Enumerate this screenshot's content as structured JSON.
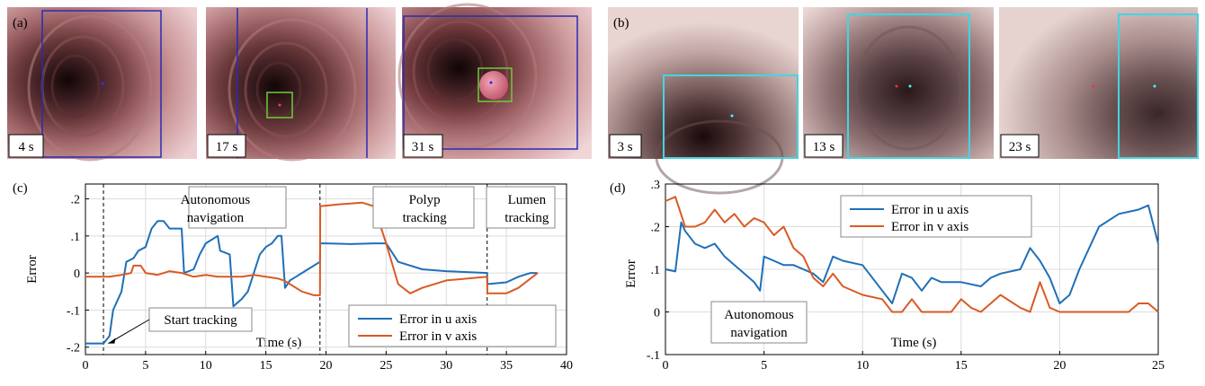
{
  "panels": {
    "a": {
      "label": "(a)",
      "frames": [
        {
          "time": "4 s",
          "boxes": [
            "blue"
          ]
        },
        {
          "time": "17 s",
          "boxes": [
            "blue",
            "green"
          ]
        },
        {
          "time": "31 s",
          "boxes": [
            "blue",
            "green"
          ]
        }
      ]
    },
    "b": {
      "label": "(b)",
      "frames": [
        {
          "time": "3 s",
          "boxes": [
            "cyan"
          ]
        },
        {
          "time": "13 s",
          "boxes": [
            "cyan"
          ]
        },
        {
          "time": "23 s",
          "boxes": [
            "cyan"
          ]
        }
      ]
    }
  },
  "colors": {
    "u_axis": "#1f6fb8",
    "v_axis": "#d95a24",
    "tracking_box_blue": "#2a2ab8",
    "tracking_box_green": "#6fcc3a",
    "tracking_box_cyan": "#45d4e0",
    "tissue_light": "#e9c7c7",
    "tissue_dark": "#3e1f22"
  },
  "chart_data": [
    {
      "panel_label": "(c)",
      "type": "line",
      "xlabel": "Time (s)",
      "ylabel": "Error",
      "xlim": [
        0,
        40
      ],
      "ylim": [
        -0.22,
        0.24
      ],
      "xticks": [
        0,
        5,
        10,
        15,
        20,
        25,
        30,
        35,
        40
      ],
      "yticks": [
        -0.2,
        -0.1,
        0,
        0.1,
        0.2
      ],
      "grid": true,
      "legend_position": "bottom-right",
      "phase_boundaries": [
        1.5,
        19.5,
        33.4
      ],
      "annotations": [
        {
          "text": "Autonomous",
          "x": 10.8,
          "y": 0.2
        },
        {
          "text": "navigation",
          "x": 10.8,
          "y": 0.155
        },
        {
          "text": "Polyp",
          "x": 28.2,
          "y": 0.175
        },
        {
          "text": "tracking",
          "x": 28.2,
          "y": 0.13
        },
        {
          "text": "Lumen",
          "x": 36.7,
          "y": 0.175
        },
        {
          "text": "tracking",
          "x": 36.7,
          "y": 0.13
        },
        {
          "text": "Start tracking",
          "x": 8.5,
          "y": -0.155
        }
      ],
      "series": [
        {
          "name": "Error in u axis",
          "x": [
            0,
            1.5,
            2,
            2.3,
            3,
            3.4,
            4,
            4.4,
            5,
            5.5,
            6,
            6.5,
            7,
            7.6,
            8,
            8.2,
            9,
            9.5,
            10,
            10.5,
            11,
            11.2,
            12,
            12.3,
            13,
            13.5,
            14,
            14.5,
            15,
            15.5,
            16,
            16.3,
            16.6,
            17,
            17.5,
            18,
            18.5,
            19.5,
            19.52,
            20,
            22,
            24,
            25,
            26,
            28,
            30,
            33.4,
            33.42,
            35,
            36,
            37,
            37.6
          ],
          "values": [
            -0.19,
            -0.19,
            -0.17,
            -0.1,
            -0.05,
            0.03,
            0.04,
            0.06,
            0.07,
            0.12,
            0.14,
            0.14,
            0.12,
            0.12,
            0.12,
            0.0,
            0.01,
            0.05,
            0.08,
            0.09,
            0.1,
            0.06,
            0.05,
            -0.09,
            -0.07,
            -0.05,
            0.0,
            0.05,
            0.07,
            0.08,
            0.1,
            0.1,
            -0.04,
            -0.02,
            -0.01,
            0.0,
            0.01,
            0.03,
            0.08,
            0.08,
            0.078,
            0.08,
            0.08,
            0.03,
            0.01,
            0.005,
            0.0,
            -0.03,
            -0.025,
            -0.01,
            0.0,
            0.0
          ]
        },
        {
          "name": "Error in v axis",
          "x": [
            0,
            1.5,
            2,
            3,
            3.8,
            4,
            4.2,
            4.4,
            4.6,
            5,
            6,
            7,
            8,
            9,
            10,
            11,
            12,
            13,
            14,
            15,
            16,
            16.5,
            17,
            18,
            19,
            19.5,
            19.52,
            21,
            23,
            24,
            25,
            26,
            27,
            28,
            30,
            33.4,
            33.42,
            35,
            36,
            37,
            37.6
          ],
          "values": [
            -0.01,
            -0.01,
            -0.01,
            -0.005,
            0.0,
            0.02,
            0.02,
            0.02,
            0.02,
            0.0,
            -0.005,
            0.005,
            0.0,
            -0.01,
            -0.005,
            -0.01,
            -0.01,
            -0.01,
            -0.005,
            -0.01,
            -0.015,
            -0.02,
            -0.03,
            -0.05,
            -0.06,
            -0.06,
            0.18,
            0.185,
            0.19,
            0.18,
            0.08,
            -0.03,
            -0.055,
            -0.04,
            -0.02,
            -0.01,
            -0.055,
            -0.055,
            -0.04,
            -0.015,
            0.0
          ]
        }
      ]
    },
    {
      "panel_label": "(d)",
      "type": "line",
      "xlabel": "Time (s)",
      "ylabel": "Error",
      "xlim": [
        0,
        25
      ],
      "ylim": [
        -0.1,
        0.3
      ],
      "xticks": [
        0,
        5,
        10,
        15,
        20,
        25
      ],
      "yticks": [
        -0.1,
        0,
        0.1,
        0.2,
        0.3
      ],
      "grid": true,
      "legend_position": "top-center",
      "annotations": [
        {
          "text": "Autonomous",
          "x": 4.5,
          "y": 0.0
        },
        {
          "text": "navigation",
          "x": 4.5,
          "y": -0.032
        }
      ],
      "series": [
        {
          "name": "Error in u axis",
          "x": [
            0,
            0.5,
            0.8,
            1,
            1.5,
            2,
            2.5,
            3,
            3.5,
            4,
            4.5,
            4.8,
            5,
            5.5,
            6,
            6.5,
            7,
            7.5,
            8,
            8.5,
            9,
            10,
            11,
            11.5,
            12,
            12.5,
            13,
            13.5,
            14,
            15,
            16,
            16.5,
            17,
            18,
            18.5,
            19,
            19.5,
            20,
            20.5,
            21,
            22,
            23,
            24,
            24.5,
            25
          ],
          "values": [
            0.1,
            0.095,
            0.21,
            0.19,
            0.16,
            0.15,
            0.16,
            0.13,
            0.11,
            0.09,
            0.07,
            0.05,
            0.13,
            0.12,
            0.11,
            0.11,
            0.1,
            0.09,
            0.07,
            0.13,
            0.12,
            0.11,
            0.05,
            0.02,
            0.09,
            0.08,
            0.05,
            0.08,
            0.07,
            0.07,
            0.06,
            0.08,
            0.09,
            0.1,
            0.15,
            0.12,
            0.08,
            0.02,
            0.04,
            0.1,
            0.2,
            0.23,
            0.24,
            0.25,
            0.16
          ]
        },
        {
          "name": "Error in v axis",
          "x": [
            0,
            0.5,
            1,
            1.5,
            2,
            2.5,
            3,
            3.5,
            4,
            4.5,
            5,
            5.5,
            6,
            6.5,
            7,
            7.5,
            8,
            8.5,
            9,
            10,
            11,
            11.5,
            12,
            12.5,
            13,
            13.5,
            14,
            14.5,
            15,
            15.5,
            16,
            16.5,
            17,
            18,
            18.5,
            19,
            19.5,
            20,
            21,
            22,
            23,
            23.5,
            24,
            24.5,
            25
          ],
          "values": [
            0.26,
            0.27,
            0.2,
            0.2,
            0.21,
            0.24,
            0.21,
            0.23,
            0.2,
            0.22,
            0.21,
            0.18,
            0.2,
            0.15,
            0.13,
            0.08,
            0.06,
            0.09,
            0.06,
            0.04,
            0.03,
            0.0,
            0.0,
            0.03,
            0.0,
            0.0,
            0.0,
            0.0,
            0.03,
            0.01,
            0.0,
            0.02,
            0.04,
            0.01,
            0.0,
            0.07,
            0.01,
            0.0,
            0.0,
            0.0,
            0.0,
            0.0,
            0.02,
            0.02,
            0.0
          ]
        }
      ]
    }
  ]
}
